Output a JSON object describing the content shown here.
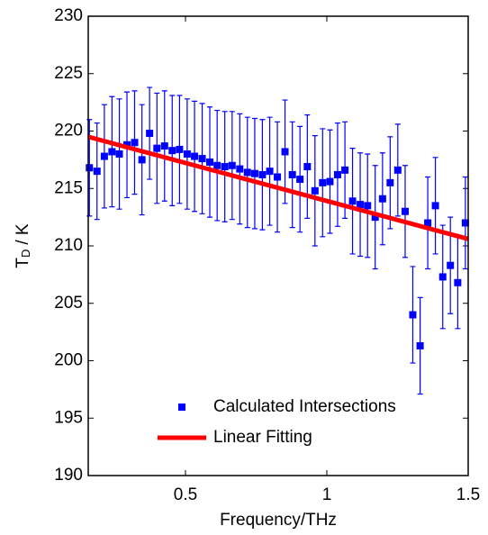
{
  "chart_data": {
    "type": "scatter",
    "xlabel": "Frequency/THz",
    "ylabel": [
      "T",
      "D",
      "/ K"
    ],
    "xlim": [
      0.156,
      1.5
    ],
    "ylim": [
      190,
      230
    ],
    "xticks": [
      0.5,
      1,
      1.5
    ],
    "yticks": [
      190,
      195,
      200,
      205,
      210,
      215,
      220,
      225,
      230
    ],
    "legend": "lower right",
    "series": [
      {
        "name": "Calculated Intersections",
        "type": "errorbar",
        "color": "#0000ff",
        "x": [
          0.16,
          0.187,
          0.213,
          0.24,
          0.266,
          0.293,
          0.32,
          0.346,
          0.373,
          0.399,
          0.426,
          0.453,
          0.479,
          0.506,
          0.532,
          0.559,
          0.586,
          0.612,
          0.639,
          0.665,
          0.692,
          0.719,
          0.745,
          0.772,
          0.798,
          0.825,
          0.852,
          0.878,
          0.905,
          0.931,
          0.958,
          0.985,
          1.011,
          1.038,
          1.064,
          1.091,
          1.118,
          1.144,
          1.171,
          1.197,
          1.224,
          1.251,
          1.277,
          1.304,
          1.33,
          1.357,
          1.384,
          1.41,
          1.437,
          1.463,
          1.49
        ],
        "values": [
          216.8,
          216.5,
          217.8,
          218.2,
          218.0,
          218.8,
          219.0,
          217.5,
          219.8,
          218.5,
          218.7,
          218.3,
          218.4,
          218.0,
          217.8,
          217.6,
          217.3,
          217.0,
          216.9,
          217.0,
          216.7,
          216.4,
          216.3,
          216.2,
          216.5,
          216.0,
          218.2,
          216.2,
          215.8,
          216.9,
          214.8,
          215.5,
          215.6,
          216.2,
          216.6,
          213.9,
          213.6,
          213.5,
          212.5,
          214.1,
          215.5,
          216.6,
          213.0,
          204.0,
          201.3,
          212.0,
          213.5,
          207.3,
          208.3,
          206.8,
          212.0
        ],
        "errors": [
          4.2,
          4.2,
          4.5,
          4.8,
          4.8,
          4.6,
          4.5,
          4.8,
          4.0,
          4.8,
          4.8,
          4.8,
          4.7,
          4.8,
          4.8,
          4.8,
          4.8,
          4.8,
          4.8,
          4.7,
          4.8,
          4.8,
          4.8,
          4.8,
          4.7,
          4.8,
          4.5,
          4.6,
          4.6,
          4.5,
          4.8,
          4.7,
          4.5,
          4.5,
          4.2,
          4.6,
          4.5,
          4.5,
          4.5,
          4.0,
          4.0,
          4.0,
          4.0,
          4.2,
          4.2,
          4.0,
          4.2,
          4.5,
          4.2,
          4.0,
          4.0
        ]
      },
      {
        "name": "Linear Fitting",
        "type": "line",
        "color": "#ff0000",
        "x": [
          0.156,
          1.5
        ],
        "values": [
          219.5,
          210.6
        ]
      }
    ]
  }
}
